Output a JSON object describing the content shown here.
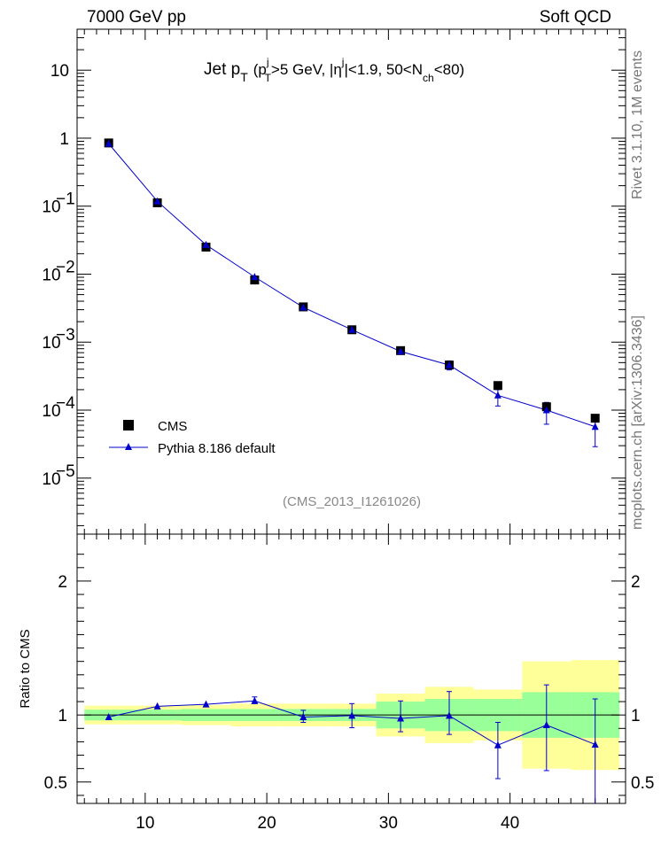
{
  "header": {
    "energy_label": "7000 GeV pp",
    "process_label": "Soft QCD"
  },
  "side_labels": {
    "rivet": "Rivet 3.1.10,  1M events",
    "mcplots": "mcplots.cern.ch [arXiv:1306.3436]"
  },
  "colors": {
    "data": "#000000",
    "mc": "#0000cc",
    "band_stat": "#99ff99",
    "band_total": "#ffff99"
  },
  "chart_data": [
    {
      "type": "scatter",
      "title": "Jet p_T (p_T^j>5 GeV, |η^j|<1.9, 50<N_ch<80)",
      "title_parts": {
        "jet": "Jet p",
        "t1": "T",
        "open": "(p",
        "j1": "j",
        "t2": "T",
        "gt5": ">5 GeV, |η",
        "j2": "j",
        "eta": "|<1.9, 50<N",
        "ch": "ch",
        "close": "<80)"
      },
      "analysis_label": "(CMS_2013_I1261026)",
      "yscale": "log",
      "ylim": [
        1.5e-06,
        40
      ],
      "xlim": [
        4.4,
        49.5
      ],
      "yticks": [
        {
          "v": 10,
          "base": "10",
          "exp": ""
        },
        {
          "v": 1,
          "base": "1",
          "exp": ""
        },
        {
          "v": 0.1,
          "base": "10",
          "exp": "−1"
        },
        {
          "v": 0.01,
          "base": "10",
          "exp": "−2"
        },
        {
          "v": 0.001,
          "base": "10",
          "exp": "−3"
        },
        {
          "v": 0.0001,
          "base": "10",
          "exp": "−4"
        },
        {
          "v": 1e-05,
          "base": "10",
          "exp": "−5"
        }
      ],
      "legend": {
        "position": "bottom-left",
        "entries": [
          "CMS",
          "Pythia 8.186 default"
        ]
      },
      "series": [
        {
          "name": "CMS",
          "x": [
            7,
            11,
            15,
            19,
            23,
            27,
            31,
            35,
            39,
            43,
            47
          ],
          "y": [
            0.85,
            0.112,
            0.025,
            0.0082,
            0.0033,
            0.00152,
            0.00075,
            0.00046,
            0.00023,
            0.000112,
            7.6e-05
          ]
        },
        {
          "name": "Pythia 8.186 default",
          "x": [
            7,
            11,
            15,
            19,
            23,
            27,
            31,
            35,
            39,
            43,
            47
          ],
          "y": [
            0.83,
            0.118,
            0.027,
            0.0091,
            0.00325,
            0.00152,
            0.00073,
            0.00046,
            0.000165,
            0.0001,
            5.7e-05
          ],
          "err_low": [
            0,
            0,
            0,
            0,
            0,
            0,
            0,
            7e-05,
            5e-05,
            3.8e-05,
            2.8e-05
          ],
          "err_high": [
            0,
            0,
            0,
            0,
            0,
            0,
            0,
            7e-05,
            3.5e-05,
            3e-05,
            2.2e-05
          ]
        }
      ]
    },
    {
      "type": "line",
      "ylabel": "Ratio to CMS",
      "xlim": [
        4.4,
        49.5
      ],
      "ylim": [
        0.34,
        2.35
      ],
      "xticks": [
        {
          "v": 10,
          "label": "10"
        },
        {
          "v": 20,
          "label": "20"
        },
        {
          "v": 30,
          "label": "30"
        },
        {
          "v": 40,
          "label": "40"
        }
      ],
      "yticks": [
        {
          "v": 2,
          "label": "2"
        },
        {
          "v": 1,
          "label": "1"
        },
        {
          "v": 0.5,
          "label": "0.5"
        }
      ],
      "bands": [
        {
          "x0": 5,
          "x1": 9,
          "stat": [
            0.96,
            1.04
          ],
          "total": [
            0.93,
            1.07
          ]
        },
        {
          "x0": 9,
          "x1": 13,
          "stat": [
            0.96,
            1.04
          ],
          "total": [
            0.93,
            1.07
          ]
        },
        {
          "x0": 13,
          "x1": 17,
          "stat": [
            0.955,
            1.045
          ],
          "total": [
            0.925,
            1.075
          ]
        },
        {
          "x0": 17,
          "x1": 21,
          "stat": [
            0.955,
            1.045
          ],
          "total": [
            0.915,
            1.085
          ]
        },
        {
          "x0": 21,
          "x1": 25,
          "stat": [
            0.955,
            1.045
          ],
          "total": [
            0.915,
            1.085
          ]
        },
        {
          "x0": 25,
          "x1": 29,
          "stat": [
            0.955,
            1.045
          ],
          "total": [
            0.915,
            1.085
          ]
        },
        {
          "x0": 29,
          "x1": 33,
          "stat": [
            0.9,
            1.1
          ],
          "total": [
            0.84,
            1.16
          ]
        },
        {
          "x0": 33,
          "x1": 37,
          "stat": [
            0.88,
            1.12
          ],
          "total": [
            0.79,
            1.21
          ]
        },
        {
          "x0": 37,
          "x1": 41,
          "stat": [
            0.88,
            1.12
          ],
          "total": [
            0.81,
            1.19
          ]
        },
        {
          "x0": 41,
          "x1": 45,
          "stat": [
            0.83,
            1.17
          ],
          "total": [
            0.6,
            1.4
          ]
        },
        {
          "x0": 45,
          "x1": 49,
          "stat": [
            0.83,
            1.17
          ],
          "total": [
            0.59,
            1.41
          ]
        }
      ],
      "series": [
        {
          "name": "Pythia 8.186 default",
          "x": [
            7,
            11,
            15,
            19,
            23,
            27,
            31,
            35,
            39,
            43,
            47
          ],
          "y": [
            0.985,
            1.065,
            1.08,
            1.105,
            0.985,
            0.995,
            0.975,
            0.995,
            0.775,
            0.925,
            0.78
          ],
          "err_low": [
            0,
            0,
            0,
            0.02,
            0.04,
            0.09,
            0.1,
            0.14,
            0.25,
            0.34,
            0.45
          ],
          "err_high": [
            0,
            0,
            0,
            0.03,
            0.05,
            0.09,
            0.13,
            0.18,
            0.17,
            0.3,
            0.34
          ]
        }
      ]
    }
  ]
}
